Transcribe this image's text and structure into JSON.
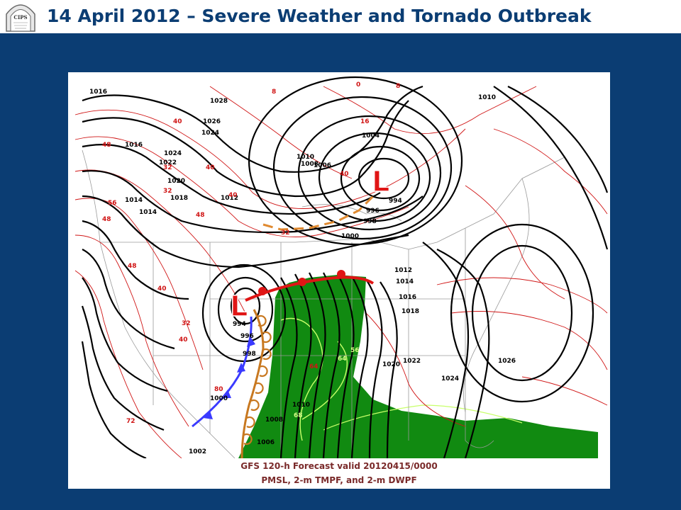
{
  "slide": {
    "title": "14 April 2012 – Severe Weather and Tornado Outbreak",
    "logo_text": "CIPS"
  },
  "map": {
    "caption_line1": "GFS 120-h Forecast valid 20120415/0000",
    "caption_line2": "PMSL, 2-m TMPF, and 2-m DWPF",
    "low_symbol": "L",
    "colors": {
      "isobar": "#000000",
      "isotherm": "#d01515",
      "moist_fill": "#118a11",
      "dewpoint_contour": "#c8ff6a",
      "warm_front": "#e01515",
      "cold_front": "#3a3aff",
      "dryline": "#c87820",
      "trough": "#e08a30"
    },
    "pressure_labels": [
      "1016",
      "1028",
      "1026",
      "1024",
      "1016",
      "1024",
      "1022",
      "1020",
      "1018",
      "1014",
      "1014",
      "1012",
      "1010",
      "1008",
      "1006",
      "1004",
      "994",
      "996",
      "998",
      "1000",
      "1010",
      "1012",
      "1014",
      "1016",
      "1018",
      "1020",
      "1022",
      "1024",
      "1026",
      "994",
      "996",
      "998",
      "1000",
      "1002",
      "1010",
      "1008",
      "1006"
    ],
    "temp_labels": [
      "8",
      "0",
      "8",
      "16",
      "40",
      "48",
      "40",
      "32",
      "40",
      "32",
      "56",
      "48",
      "40",
      "48",
      "48",
      "40",
      "32",
      "40",
      "80",
      "72",
      "32",
      "64",
      "64",
      "68",
      "56"
    ]
  }
}
